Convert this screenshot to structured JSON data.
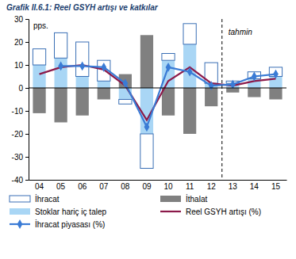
{
  "chart_data": {
    "type": "bar",
    "title": "Grafik II.6.1: Reel GSYH artışı ve katkılar",
    "y_label": "pps.",
    "annotations": [
      {
        "text": "tahmin",
        "x": "13"
      }
    ],
    "categories": [
      "04",
      "05",
      "06",
      "07",
      "08",
      "09",
      "10",
      "11",
      "12",
      "13",
      "14",
      "15"
    ],
    "stacked": true,
    "grid": false,
    "legend": "bottom",
    "ylim": [
      -40,
      30
    ],
    "yticks": [
      -40,
      -30,
      -20,
      -10,
      0,
      10,
      20,
      30
    ],
    "series": [
      {
        "name": "Stoklar hariç iç talep",
        "type": "bar",
        "color": "#a9d6f5",
        "values": [
          10,
          13,
          5,
          3,
          -5,
          -20,
          12,
          19,
          2,
          2,
          4,
          5
        ]
      },
      {
        "name": "İhracat",
        "type": "bar",
        "color": "#ffffff",
        "values": [
          7,
          11,
          15,
          9,
          -2,
          -15,
          3,
          9,
          9,
          1,
          3,
          4
        ]
      },
      {
        "name": "İthalat",
        "type": "bar",
        "color": "#808080",
        "values": [
          -11,
          -15,
          -12,
          -5,
          6,
          23,
          -12,
          -20,
          -8,
          -2,
          -4,
          -5
        ]
      },
      {
        "name": "Reel GSYH artışı (%)",
        "type": "line",
        "color": "#8b1a4a",
        "line_style": "solid",
        "values": [
          6,
          9,
          10,
          8,
          1,
          -14,
          3,
          9,
          2,
          1,
          3,
          4
        ]
      },
      {
        "name": "İhracat piyasası (%)",
        "type": "line",
        "color": "#3a7bd5",
        "line_style": "solid",
        "marker": "diamond",
        "values": [
          null,
          9.5,
          9.5,
          9,
          2,
          -17,
          9,
          7,
          1,
          1.5,
          5,
          6
        ]
      }
    ]
  }
}
